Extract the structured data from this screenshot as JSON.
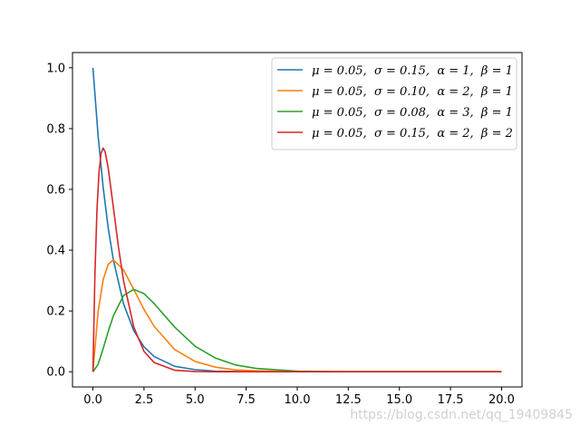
{
  "chart_data": {
    "type": "line",
    "title": "",
    "xlabel": "",
    "ylabel": "",
    "xlim": [
      -1,
      21
    ],
    "ylim": [
      -0.05,
      1.05
    ],
    "x_ticks": [
      0.0,
      2.5,
      5.0,
      7.5,
      10.0,
      12.5,
      15.0,
      17.5,
      20.0
    ],
    "x_tick_labels": [
      "0.0",
      "2.5",
      "5.0",
      "7.5",
      "10.0",
      "12.5",
      "15.0",
      "17.5",
      "20.0"
    ],
    "y_ticks": [
      0.0,
      0.2,
      0.4,
      0.6,
      0.8,
      1.0
    ],
    "y_tick_labels": [
      "0.0",
      "0.2",
      "0.4",
      "0.6",
      "0.8",
      "1.0"
    ],
    "grid": false,
    "legend_position": "top-right",
    "series": [
      {
        "name": "μ = 0.05,  σ = 0.15,  α = 1,  β = 1",
        "color": "#1f77b4",
        "x": [
          0,
          0.25,
          0.5,
          0.75,
          1,
          1.5,
          2,
          2.5,
          3,
          4,
          5,
          6,
          7,
          8,
          10,
          12.5,
          15,
          17.5,
          20
        ],
        "y": [
          1.0,
          0.779,
          0.607,
          0.472,
          0.368,
          0.223,
          0.135,
          0.082,
          0.05,
          0.018,
          0.007,
          0.002,
          0.001,
          0.0,
          0.0,
          0.0,
          0.0,
          0.0,
          0.0
        ]
      },
      {
        "name": "μ = 0.05,  σ = 0.10,  α = 2,  β = 1",
        "color": "#ff7f0e",
        "x": [
          0,
          0.25,
          0.5,
          0.75,
          1,
          1.5,
          2,
          2.5,
          3,
          4,
          5,
          6,
          7,
          8,
          10,
          12.5,
          15,
          17.5,
          20
        ],
        "y": [
          0.0,
          0.195,
          0.303,
          0.354,
          0.368,
          0.335,
          0.271,
          0.205,
          0.149,
          0.073,
          0.034,
          0.015,
          0.006,
          0.003,
          0.0,
          0.0,
          0.0,
          0.0,
          0.0
        ]
      },
      {
        "name": "μ = 0.05,  σ = 0.08,  α = 3,  β = 1",
        "color": "#2ca02c",
        "x": [
          0,
          0.25,
          0.5,
          0.75,
          1,
          1.5,
          2,
          2.5,
          3,
          4,
          5,
          6,
          7,
          8,
          10,
          12.5,
          15,
          17.5,
          20
        ],
        "y": [
          0.0,
          0.024,
          0.076,
          0.133,
          0.184,
          0.251,
          0.271,
          0.257,
          0.224,
          0.147,
          0.084,
          0.045,
          0.022,
          0.011,
          0.002,
          0.0,
          0.0,
          0.0,
          0.0
        ]
      },
      {
        "name": "μ = 0.05,  σ = 0.15,  α = 2,  β = 2",
        "color": "#d62728",
        "x": [
          0,
          0.1,
          0.2,
          0.3,
          0.4,
          0.5,
          0.6,
          0.75,
          1,
          1.25,
          1.5,
          2,
          2.5,
          3,
          4,
          5,
          6,
          8,
          10,
          15,
          20
        ],
        "y": [
          0.0,
          0.327,
          0.536,
          0.659,
          0.719,
          0.736,
          0.723,
          0.669,
          0.541,
          0.41,
          0.299,
          0.147,
          0.067,
          0.03,
          0.005,
          0.001,
          0.0,
          0.0,
          0.0,
          0.0,
          0.0
        ]
      }
    ]
  },
  "watermark": "https://blog.csdn.net/qq_19409845"
}
